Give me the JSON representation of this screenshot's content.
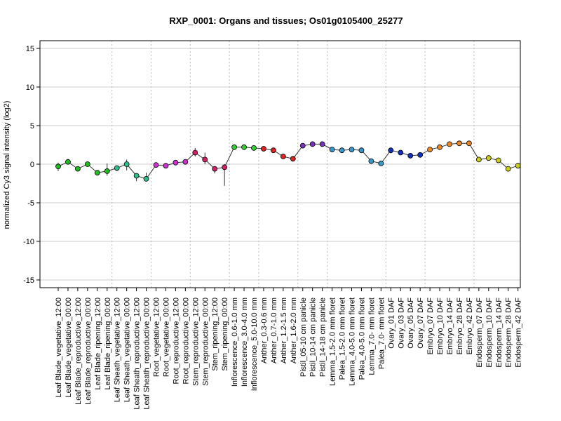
{
  "chart_data": {
    "type": "line",
    "title": "RXP_0001: Organs and tissues; Os01g0105400_25277",
    "xlabel": "",
    "ylabel": "normalized Cy3 signal intensity (log2)",
    "ylim": [
      -16,
      16
    ],
    "yticks": [
      -15,
      -10,
      -5,
      0,
      5,
      10,
      15
    ],
    "grid": "horizontal gridlines at y ticks; dotted vertical separators between sample groups",
    "categories": [
      "Leaf Blade_vegetative_12:00",
      "Leaf Blade_vegetative_00:00",
      "Leaf Blade_reproductive_12:00",
      "Leaf Blade_reproductive_00:00",
      "Leaf Blade_ripening_12:00",
      "Leaf Blade_ripening_00:00",
      "Leaf Sheath_vegetative_12:00",
      "Leaf Sheath_vegetative_00:00",
      "Leaf Sheath_reproductive_12:00",
      "Leaf Sheath_reproductive_00:00",
      "Root_vegetative_12:00",
      "Root_vegetative_00:00",
      "Root_reproductive_12:00",
      "Root_reproductive_00:00",
      "Stem_reproductive_12:00",
      "Stem_reproductive_00:00",
      "Stem_ripening_12:00",
      "Stem_ripening_00:00",
      "Inflorescence_0.6-1.0 mm",
      "Inflorescence_3.0-4.0 mm",
      "Inflorescence_5.0-10.0 mm",
      "Anther_0.3-0.6 mm",
      "Anther_0.7-1.0 mm",
      "Anther_1.2-1.5 mm",
      "Anther_1.6-2.0 mm",
      "Pistil_05-10 cm panicle",
      "Pistil_10-14 cm panicle",
      "Pistil_14-18 cm panicle",
      "Lemma_1.5-2.0 mm floret",
      "Palea_1.5-2.0 mm floret",
      "Lemma_4.0-5.0 mm floret",
      "Palea_4.0-5.0 mm floret",
      "Lemma_7.0- mm floret",
      "Palea_7.0- mm floret",
      "Ovary_01 DAF",
      "Ovary_03 DAF",
      "Ovary_05 DAF",
      "Ovary_07 DAF",
      "Embryo_07 DAF",
      "Embryo_10 DAF",
      "Embryo_14 DAF",
      "Embryo_28 DAF",
      "Embryo_42 DAF",
      "Endosperm_07 DAF",
      "Endosperm_10 DAF",
      "Endosperm_14 DAF",
      "Endosperm_28 DAF",
      "Endosperm_42 DAF"
    ],
    "values": [
      -0.3,
      0.3,
      -0.6,
      0.0,
      -1.1,
      -0.9,
      -0.5,
      0.0,
      -1.5,
      -1.9,
      -0.1,
      -0.2,
      0.2,
      0.3,
      1.5,
      0.6,
      -0.6,
      -0.4,
      2.2,
      2.2,
      2.1,
      2.0,
      1.8,
      1.0,
      0.7,
      2.4,
      2.6,
      2.6,
      1.9,
      1.8,
      1.9,
      1.8,
      0.4,
      0.1,
      1.8,
      1.5,
      1.1,
      1.2,
      1.9,
      2.2,
      2.6,
      2.7,
      2.7,
      0.6,
      0.8,
      0.5,
      -0.6,
      -0.2
    ],
    "errors": [
      [
        -0.9,
        0.2
      ],
      [
        0.1,
        0.5
      ],
      [
        -0.8,
        -0.3
      ],
      [
        0.0,
        0.0
      ],
      [
        -1.4,
        -0.8
      ],
      [
        -1.5,
        0.1
      ],
      [
        -0.9,
        -0.2
      ],
      [
        -0.8,
        0.6
      ],
      [
        -2.2,
        -1.2
      ],
      [
        -2.2,
        -1.1
      ],
      [
        -0.1,
        -0.1
      ],
      [
        -0.2,
        -0.2
      ],
      [
        0.2,
        0.2
      ],
      [
        0.3,
        0.3
      ],
      [
        1.0,
        2.1
      ],
      [
        0.0,
        1.5
      ],
      [
        -1.2,
        -0.3
      ],
      [
        -2.8,
        0.0
      ],
      [
        2.2,
        2.2
      ],
      [
        2.2,
        2.2
      ],
      [
        2.1,
        2.1
      ],
      [
        2.0,
        2.0
      ],
      [
        1.8,
        1.8
      ],
      [
        0.8,
        1.2
      ],
      [
        0.7,
        0.7
      ],
      [
        2.4,
        2.4
      ],
      [
        2.6,
        2.6
      ],
      [
        2.6,
        2.6
      ],
      [
        1.6,
        2.2
      ],
      [
        1.5,
        2.1
      ],
      [
        1.9,
        1.9
      ],
      [
        1.8,
        1.8
      ],
      [
        0.1,
        0.7
      ],
      [
        0.0,
        0.3
      ],
      [
        1.4,
        2.0
      ],
      [
        1.5,
        1.5
      ],
      [
        1.1,
        1.1
      ],
      [
        1.2,
        1.2
      ],
      [
        1.9,
        1.9
      ],
      [
        2.2,
        2.2
      ],
      [
        2.6,
        2.6
      ],
      [
        2.7,
        2.7
      ],
      [
        2.7,
        2.7
      ],
      [
        0.6,
        0.6
      ],
      [
        0.8,
        0.8
      ],
      [
        0.5,
        0.5
      ],
      [
        -0.6,
        -0.6
      ],
      [
        -0.2,
        -0.2
      ]
    ],
    "point_colors": [
      "#22bb22",
      "#22bb22",
      "#22bb22",
      "#22bb22",
      "#22bb22",
      "#22bb22",
      "#33bb88",
      "#33bb88",
      "#33bb88",
      "#33bb88",
      "#cc33cc",
      "#cc33cc",
      "#cc33cc",
      "#cc33cc",
      "#cc2266",
      "#cc2266",
      "#cc2266",
      "#cc2266",
      "#33cc33",
      "#33cc33",
      "#33cc33",
      "#dd2222",
      "#dd2222",
      "#dd2222",
      "#dd2222",
      "#7733bb",
      "#7733bb",
      "#7733bb",
      "#3399cc",
      "#3399cc",
      "#3399cc",
      "#3399cc",
      "#3399cc",
      "#3399cc",
      "#1133bb",
      "#1133bb",
      "#1133bb",
      "#1133bb",
      "#ee8822",
      "#ee8822",
      "#ee8822",
      "#ee8822",
      "#ee8822",
      "#cccc22",
      "#cccc22",
      "#cccc22",
      "#cccc22",
      "#cccc22"
    ],
    "group_separators_after": [
      5,
      9,
      13,
      17,
      20,
      24,
      27,
      33,
      37,
      42
    ]
  }
}
